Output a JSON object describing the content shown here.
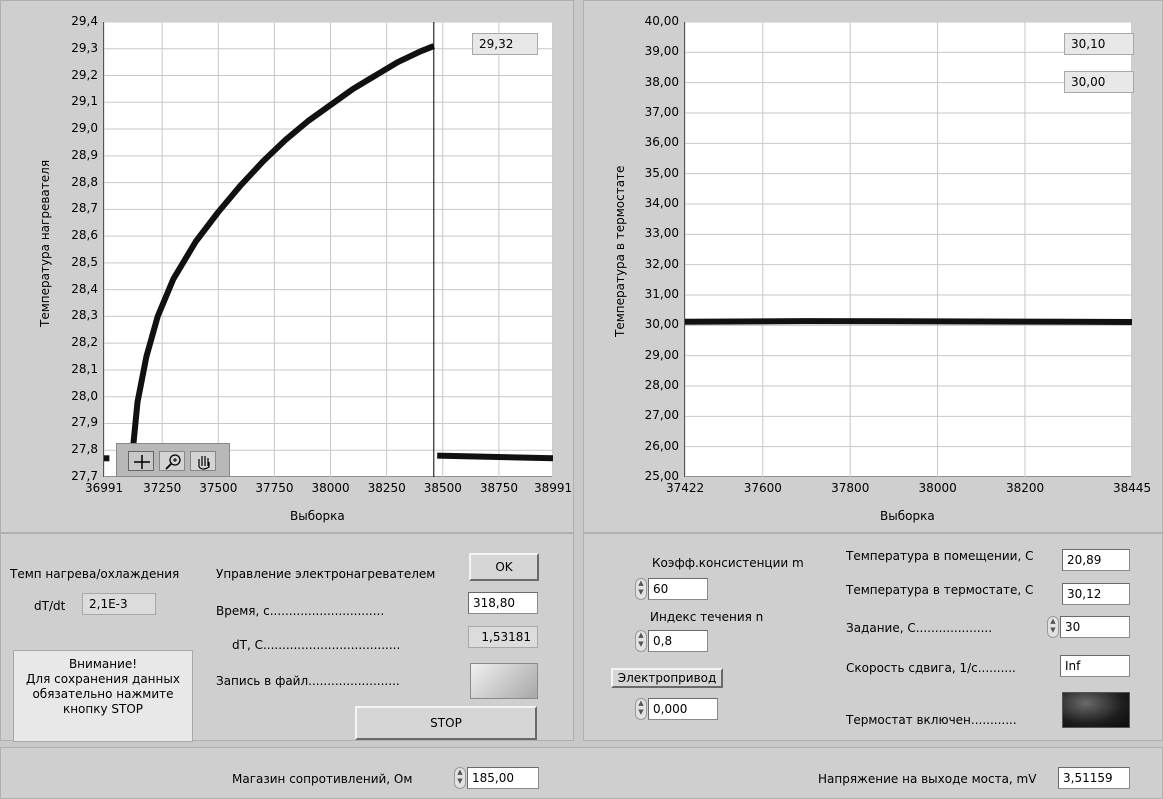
{
  "left_chart": {
    "ylabel": "Температура нагревателя",
    "xlabel": "Выборка",
    "y_ticks": [
      "29,4",
      "29,3",
      "29,2",
      "29,1",
      "29,0",
      "28,9",
      "28,8",
      "28,7",
      "28,6",
      "28,5",
      "28,4",
      "28,3",
      "28,2",
      "28,1",
      "28,0",
      "27,9",
      "27,8",
      "27,7"
    ],
    "x_ticks": [
      "36991",
      "37250",
      "37500",
      "37750",
      "38000",
      "38250",
      "38500",
      "38750",
      "38991"
    ],
    "cursor_value": "29,32",
    "tools": {
      "crosshair": "crosshair-icon",
      "zoom": "zoom-icon",
      "pan": "pan-hand-icon"
    }
  },
  "right_chart": {
    "ylabel": "Температура в термостате",
    "xlabel": "Выборка",
    "y_ticks": [
      "40,00",
      "39,00",
      "38,00",
      "37,00",
      "36,00",
      "35,00",
      "34,00",
      "33,00",
      "32,00",
      "31,00",
      "30,00",
      "29,00",
      "28,00",
      "27,00",
      "26,00",
      "25,00"
    ],
    "x_ticks": [
      "37422",
      "37600",
      "37800",
      "38000",
      "38200",
      "38445"
    ],
    "value1": "30,10",
    "value2": "30,00"
  },
  "chart_data": [
    {
      "type": "line",
      "xlabel": "Выборка",
      "ylabel": "Температура нагревателя",
      "xlim": [
        36991,
        38991
      ],
      "ylim": [
        27.7,
        29.4
      ],
      "series": [
        {
          "x": [
            36991,
            37015
          ],
          "y": [
            27.77,
            27.77
          ]
        },
        {
          "x": [
            37110,
            37140,
            37180,
            37230,
            37300,
            37400,
            37500,
            37600,
            37700,
            37800,
            37900,
            38000,
            38100,
            38200,
            38300,
            38400,
            38460
          ],
          "y": [
            27.72,
            27.98,
            28.15,
            28.3,
            28.44,
            28.58,
            28.69,
            28.79,
            28.88,
            28.96,
            29.03,
            29.09,
            29.15,
            29.2,
            29.25,
            29.29,
            29.31
          ]
        },
        {
          "x": [
            38475,
            38991
          ],
          "y": [
            27.78,
            27.77
          ]
        }
      ],
      "cursor_x": 38460
    },
    {
      "type": "line",
      "xlabel": "Выборка",
      "ylabel": "Температура в термостате",
      "xlim": [
        37422,
        38445
      ],
      "ylim": [
        25,
        40
      ],
      "series": [
        {
          "x": [
            37422,
            37700,
            38000,
            38300,
            38445
          ],
          "y": [
            30.12,
            30.14,
            30.13,
            30.12,
            30.11
          ]
        }
      ]
    }
  ],
  "controls": {
    "rate_title": "Темп нагрева/охлаждения",
    "dtdt_label": "dT/dt",
    "dtdt_value": "2,1E-3",
    "notice": [
      "Внимание!",
      "Для сохранения данных",
      "обязательно нажмите",
      "кнопку STOP"
    ],
    "heater_control_label": "Управление электронагревателем",
    "ok_label": "OK",
    "time_label": "Время, с..............................",
    "time_value": "318,80",
    "dt_label": "dT, С....................................",
    "dt_value": "1,53181",
    "write_file_label": "Запись в файл........................",
    "stop_label": "STOP",
    "consistency_label": "Коэфф.консистенции m",
    "consistency_value": "60",
    "flow_index_label": "Индекс течения n",
    "flow_index_value": "0,8",
    "drive_label": "Электропривод",
    "drive_value": "0,000",
    "room_temp_label": "Температура в помещении, С",
    "room_temp_value": "20,89",
    "thermo_temp_label": "Температура в термостате, С",
    "thermo_temp_value": "30,12",
    "setpoint_label": "Задание, С....................",
    "setpoint_value": "30",
    "shear_label": "Скорость сдвига, 1/с..........",
    "shear_value": "Inf",
    "thermostat_on_label": "Термостат включен............",
    "resistance_label": "Магазин сопротивлений, Ом",
    "resistance_value": "185,00",
    "bridge_label": "Напряжение на выходе моста, mV",
    "bridge_value": "3,51159"
  }
}
